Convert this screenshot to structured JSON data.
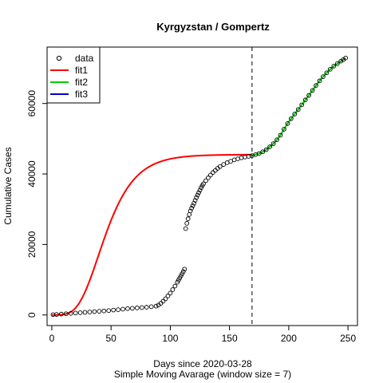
{
  "chart_data": {
    "type": "scatter",
    "title": "Kyrgyzstan / Gompertz",
    "xlabel": "Days since 2020-03-28",
    "subtitle": "Simple Moving Avarage (window size = 7)",
    "ylabel": "Cumulative Cases",
    "xlim": [
      -4,
      258
    ],
    "ylim": [
      -3000,
      76000
    ],
    "x_ticks": [
      0,
      50,
      100,
      150,
      200,
      250
    ],
    "x_tick_labels": [
      "0",
      "50",
      "100",
      "150",
      "200",
      "250"
    ],
    "y_ticks": [
      0,
      20000,
      40000,
      60000
    ],
    "y_tick_labels": [
      "0",
      "20000",
      "40000",
      "60000"
    ],
    "grid": false,
    "legend": {
      "position": "top-left",
      "entries": [
        {
          "label": "data",
          "symbol": "circle",
          "color": "#000000"
        },
        {
          "label": "fit1",
          "symbol": "line",
          "color": "#ff0000"
        },
        {
          "label": "fit2",
          "symbol": "line",
          "color": "#00cc00"
        },
        {
          "label": "fit3",
          "symbol": "line",
          "color": "#0000cc"
        }
      ]
    },
    "vline": {
      "x": 169,
      "style": "dashed",
      "color": "#000000"
    },
    "data_series": {
      "name": "data",
      "x": [
        1,
        4,
        8,
        12,
        16,
        20,
        24,
        28,
        32,
        36,
        40,
        44,
        48,
        52,
        56,
        60,
        64,
        68,
        72,
        76,
        80,
        84,
        88,
        90,
        92,
        94,
        96,
        98,
        100,
        102,
        104,
        106,
        107,
        108,
        109,
        110,
        111,
        112,
        113,
        114,
        115,
        116,
        117,
        118,
        119,
        120,
        121,
        122,
        123,
        124,
        125,
        126,
        127,
        128,
        130,
        132,
        134,
        136,
        138,
        140,
        142,
        145,
        148,
        151,
        154,
        157,
        160,
        163,
        166,
        169,
        172,
        175,
        178,
        181,
        184,
        187,
        190,
        193,
        196,
        199,
        202,
        205,
        208,
        211,
        214,
        217,
        220,
        223,
        226,
        229,
        232,
        235,
        238,
        241,
        244,
        246,
        248
      ],
      "y": [
        100,
        150,
        250,
        350,
        450,
        550,
        650,
        750,
        850,
        950,
        1050,
        1150,
        1250,
        1400,
        1500,
        1650,
        1800,
        1900,
        2000,
        2100,
        2200,
        2350,
        2500,
        2800,
        3300,
        3900,
        4600,
        5400,
        6200,
        7200,
        8200,
        9300,
        9900,
        10500,
        11100,
        11700,
        12300,
        13000,
        24500,
        26000,
        27300,
        28500,
        29500,
        30300,
        31000,
        31700,
        32500,
        33300,
        34000,
        34700,
        35400,
        36100,
        36700,
        37200,
        38100,
        38900,
        39700,
        40400,
        41000,
        41600,
        42100,
        42700,
        43200,
        43600,
        44000,
        44300,
        44600,
        44800,
        45000,
        45200,
        45500,
        45800,
        46300,
        46900,
        47700,
        48600,
        49700,
        51000,
        52700,
        54300,
        55700,
        57000,
        58300,
        59600,
        61000,
        62300,
        63700,
        65100,
        66400,
        67600,
        68700,
        69700,
        70600,
        71300,
        72000,
        72400,
        72900
      ]
    },
    "fit1_series": {
      "name": "fit1",
      "model": "gompertz",
      "params": {
        "a": 45500,
        "b": 10.2,
        "c": 0.0592
      },
      "x_range": [
        0,
        169
      ]
    },
    "fit2_series": {
      "name": "fit2",
      "x": [
        169,
        172,
        175,
        178,
        181,
        184,
        187,
        190,
        193,
        196,
        199,
        202,
        205,
        208,
        211,
        214,
        217,
        220,
        223,
        226,
        229,
        232,
        235,
        238,
        241,
        244,
        246,
        248
      ],
      "y": [
        45200,
        45500,
        45800,
        46300,
        46900,
        47700,
        48600,
        49700,
        51000,
        52700,
        54300,
        55700,
        57000,
        58300,
        59600,
        61000,
        62300,
        63700,
        65100,
        66400,
        67600,
        68700,
        69700,
        70600,
        71300,
        72000,
        72400,
        72900
      ]
    }
  }
}
